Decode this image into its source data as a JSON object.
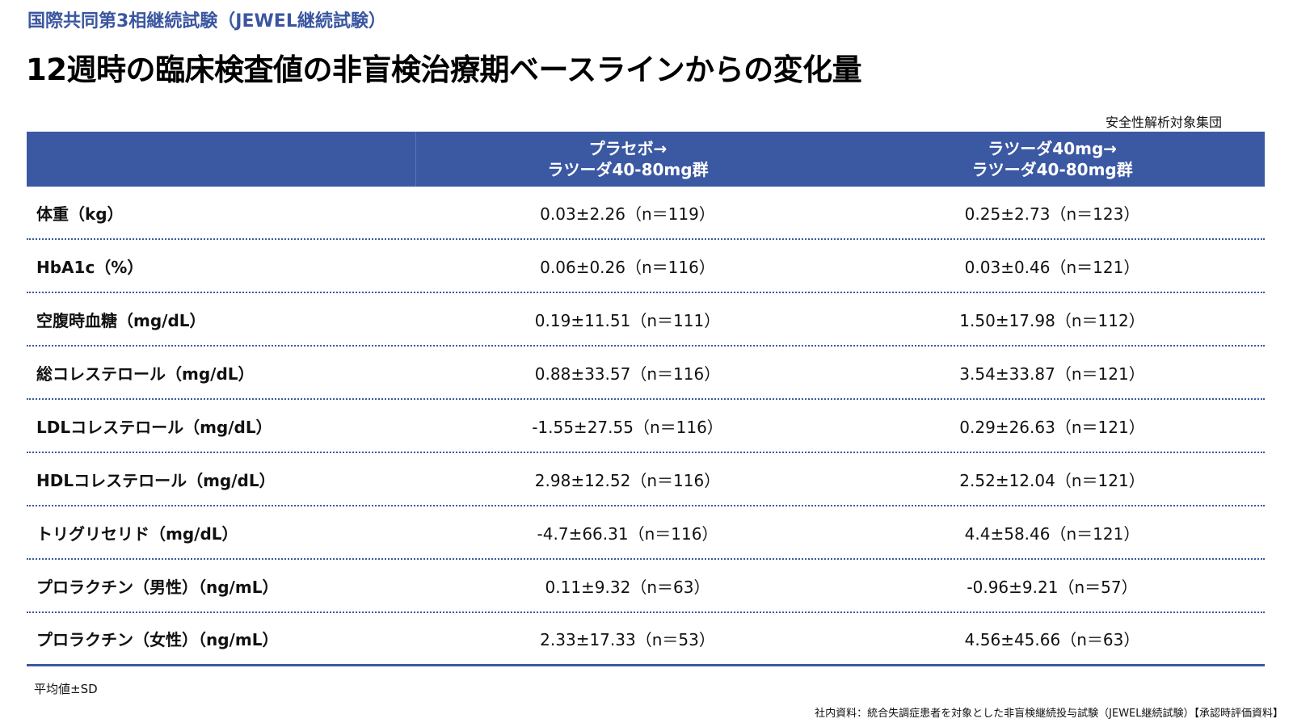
{
  "header": {
    "subtitle": "国際共同第3相継続試験（JEWEL継続試験）",
    "title": "12週時の臨床検査値の非盲検治療期ベースラインからの変化量",
    "population": "安全性解析対象集団"
  },
  "table": {
    "columns": [
      "",
      "プラセボ→\nラツーダ40-80mg群",
      "ラツーダ40mg→\nラツーダ40-80mg群"
    ],
    "rows": [
      {
        "label": "体重（kg）",
        "col1": "0.03±2.26（n＝119）",
        "col2": "0.25±2.73（n＝123）"
      },
      {
        "label": "HbA1c（%）",
        "col1": "0.06±0.26（n＝116）",
        "col2": "0.03±0.46（n＝121）"
      },
      {
        "label": "空腹時血糖（mg/dL）",
        "col1": "0.19±11.51（n＝111）",
        "col2": "1.50±17.98（n＝112）"
      },
      {
        "label": "総コレステロール（mg/dL）",
        "col1": "0.88±33.57（n＝116）",
        "col2": "3.54±33.87（n＝121）"
      },
      {
        "label": "LDLコレステロール（mg/dL）",
        "col1": "-1.55±27.55（n＝116）",
        "col2": "0.29±26.63（n＝121）"
      },
      {
        "label": "HDLコレステロール（mg/dL）",
        "col1": "2.98±12.52（n＝116）",
        "col2": "2.52±12.04（n＝121）"
      },
      {
        "label": "トリグリセリド（mg/dL）",
        "col1": "-4.7±66.31（n＝116）",
        "col2": "4.4±58.46（n＝121）"
      },
      {
        "label": "プロラクチン（男性）（ng/mL）",
        "col1": "0.11±9.32（n＝63）",
        "col2": "-0.96±9.21（n＝57）"
      },
      {
        "label": "プロラクチン（女性）（ng/mL）",
        "col1": "2.33±17.33（n＝53）",
        "col2": "4.56±45.66（n＝63）"
      }
    ]
  },
  "footnote": "平均値±SD",
  "source": "社内資料：統合失調症患者を対象とした非盲検継続投与試験（JEWEL継続試験）【承認時評価資料】",
  "colors": {
    "accent": "#3b58a3",
    "subtitle": "#3a56a0"
  }
}
